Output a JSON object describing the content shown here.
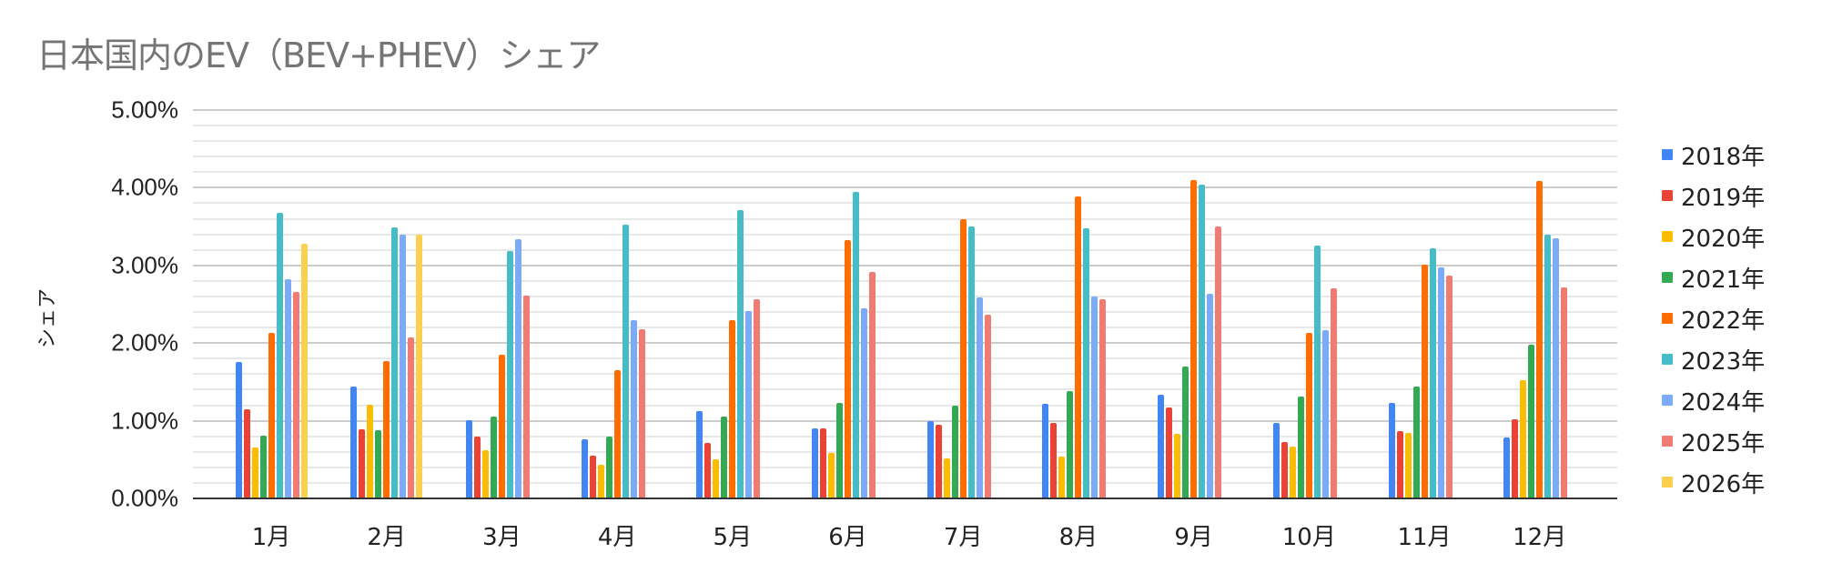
{
  "chart_data": {
    "type": "bar",
    "title": "日本国内のEV（BEV+PHEV）シェア",
    "xlabel": "",
    "ylabel": "シェア",
    "ylim": [
      0,
      0.05
    ],
    "y_ticks": [
      "0.00%",
      "1.00%",
      "2.00%",
      "3.00%",
      "4.00%",
      "5.00%"
    ],
    "grid": true,
    "legend_position": "right",
    "categories": [
      "1月",
      "2月",
      "3月",
      "4月",
      "5月",
      "6月",
      "7月",
      "8月",
      "9月",
      "10月",
      "11月",
      "12月"
    ],
    "series": [
      {
        "name": "2018年",
        "color": "#4285F4",
        "values": [
          1.76,
          1.44,
          1.01,
          0.76,
          1.12,
          0.9,
          1.0,
          1.22,
          1.34,
          0.97,
          1.23,
          0.79
        ]
      },
      {
        "name": "2019年",
        "color": "#EA4335",
        "values": [
          1.15,
          0.89,
          0.8,
          0.55,
          0.71,
          0.9,
          0.95,
          0.97,
          1.17,
          0.73,
          0.87,
          1.02
        ]
      },
      {
        "name": "2020年",
        "color": "#FBBC04",
        "values": [
          0.65,
          1.21,
          0.62,
          0.43,
          0.5,
          0.59,
          0.52,
          0.54,
          0.83,
          0.67,
          0.84,
          1.52
        ]
      },
      {
        "name": "2021年",
        "color": "#34A853",
        "values": [
          0.81,
          0.88,
          1.05,
          0.8,
          1.05,
          1.23,
          1.2,
          1.38,
          1.7,
          1.31,
          1.44,
          1.98
        ]
      },
      {
        "name": "2022年",
        "color": "#FF6D01",
        "values": [
          2.13,
          1.77,
          1.85,
          1.65,
          2.29,
          3.33,
          3.59,
          3.89,
          4.1,
          2.13,
          3.01,
          4.09
        ]
      },
      {
        "name": "2023年",
        "color": "#46BDC6",
        "values": [
          3.68,
          3.49,
          3.18,
          3.52,
          3.71,
          3.95,
          3.5,
          3.48,
          4.04,
          3.25,
          3.22,
          3.4
        ]
      },
      {
        "name": "2024年",
        "color": "#7BAAF7",
        "values": [
          2.82,
          3.39,
          3.34,
          2.29,
          2.41,
          2.45,
          2.59,
          2.6,
          2.63,
          2.17,
          2.98,
          3.35
        ]
      },
      {
        "name": "2025年",
        "color": "#F07B72",
        "values": [
          2.66,
          2.07,
          2.61,
          2.18,
          2.57,
          2.92,
          2.37,
          2.57,
          3.5,
          2.7,
          2.87,
          2.72
        ]
      },
      {
        "name": "2026年",
        "color": "#FCD04F",
        "values": [
          3.28,
          3.39,
          null,
          null,
          null,
          null,
          null,
          null,
          null,
          null,
          null,
          null
        ]
      }
    ],
    "value_unit": "%"
  }
}
